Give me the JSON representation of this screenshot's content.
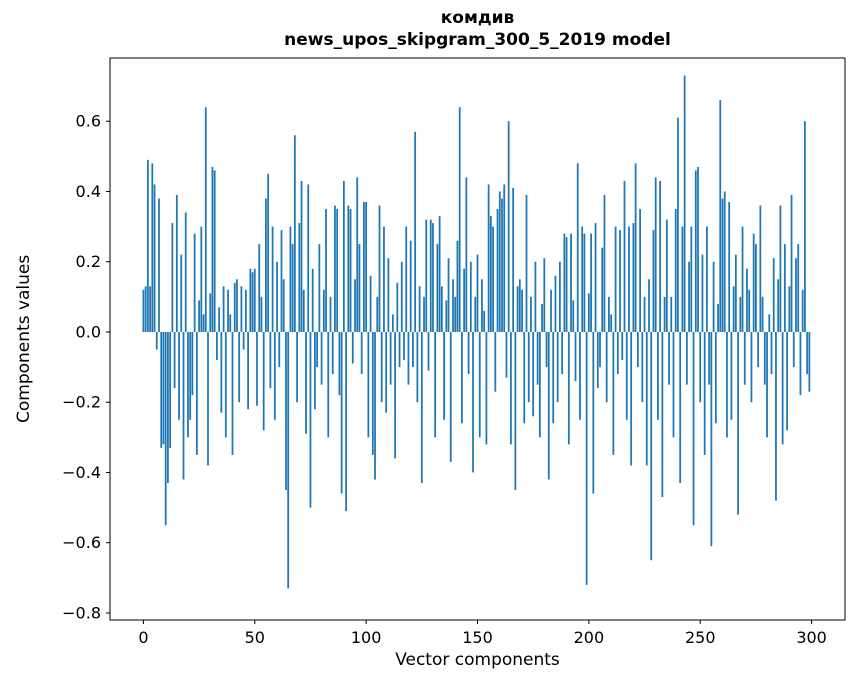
{
  "figure": {
    "title": "комдив",
    "subtitle": "news_upos_skipgram_300_5_2019 model"
  },
  "chart_data": {
    "type": "bar",
    "title": "комдив",
    "subtitle": "news_upos_skipgram_300_5_2019 model",
    "xlabel": "Vector components",
    "ylabel": "Components values",
    "legend": "none",
    "grid": false,
    "bar_color": "#1f77b4",
    "xlim": [
      -15,
      315
    ],
    "ylim": [
      -0.82,
      0.78
    ],
    "x_ticks": [
      0,
      50,
      100,
      150,
      200,
      250,
      300
    ],
    "x_tick_labels": [
      "0",
      "50",
      "100",
      "150",
      "200",
      "250",
      "300"
    ],
    "y_ticks": [
      -0.8,
      -0.6,
      -0.4,
      -0.2,
      0.0,
      0.2,
      0.4,
      0.6
    ],
    "y_tick_labels": [
      "−0.8",
      "−0.6",
      "−0.4",
      "−0.2",
      "0.0",
      "0.2",
      "0.4",
      "0.6"
    ],
    "values": [
      0.12,
      0.13,
      0.49,
      0.13,
      0.48,
      0.42,
      -0.05,
      0.38,
      -0.33,
      -0.32,
      -0.55,
      -0.43,
      -0.33,
      0.31,
      -0.16,
      0.39,
      -0.25,
      0.22,
      -0.42,
      0.34,
      -0.3,
      -0.25,
      -0.18,
      0.28,
      -0.35,
      0.09,
      0.3,
      0.05,
      0.64,
      -0.38,
      0.11,
      0.47,
      0.46,
      -0.08,
      0.07,
      -0.23,
      0.13,
      -0.3,
      0.12,
      0.05,
      -0.35,
      0.14,
      0.15,
      -0.2,
      0.13,
      -0.05,
      0.12,
      -0.22,
      0.18,
      0.17,
      0.18,
      -0.21,
      0.25,
      0.1,
      -0.28,
      0.38,
      0.45,
      -0.16,
      0.3,
      -0.25,
      0.2,
      -0.1,
      0.29,
      0.15,
      -0.45,
      -0.73,
      0.3,
      0.25,
      0.56,
      -0.2,
      0.31,
      0.43,
      0.12,
      -0.29,
      0.42,
      -0.5,
      0.18,
      -0.22,
      -0.1,
      0.25,
      -0.15,
      0.12,
      0.35,
      -0.3,
      0.1,
      -0.12,
      0.36,
      0.35,
      -0.18,
      -0.46,
      0.43,
      -0.51,
      0.36,
      0.35,
      -0.09,
      0.15,
      0.44,
      0.25,
      -0.12,
      0.37,
      0.37,
      -0.3,
      0.16,
      -0.35,
      -0.42,
      0.1,
      0.36,
      -0.2,
      0.3,
      -0.23,
      0.21,
      -0.15,
      0.05,
      -0.36,
      0.14,
      -0.1,
      0.2,
      -0.08,
      0.3,
      -0.15,
      0.26,
      -0.1,
      0.57,
      -0.2,
      0.13,
      -0.43,
      0.1,
      0.32,
      -0.11,
      0.32,
      0.31,
      -0.3,
      0.25,
      0.33,
      0.13,
      -0.25,
      0.09,
      0.21,
      -0.37,
      0.15,
      0.1,
      0.26,
      0.64,
      -0.26,
      0.18,
      0.44,
      -0.12,
      0.2,
      -0.4,
      0.1,
      0.22,
      -0.3,
      0.15,
      0.06,
      -0.32,
      0.42,
      0.33,
      0.3,
      -0.17,
      0.35,
      0.4,
      0.38,
      0.42,
      -0.13,
      0.6,
      -0.32,
      0.41,
      -0.45,
      0.13,
      0.15,
      0.12,
      -0.26,
      0.39,
      -0.2,
      0.1,
      -0.24,
      0.2,
      -0.15,
      -0.3,
      0.08,
      0.21,
      -0.1,
      -0.42,
      0.12,
      -0.26,
      0.16,
      -0.2,
      0.2,
      -0.12,
      0.28,
      0.27,
      -0.32,
      0.28,
      0.09,
      -0.14,
      0.48,
      -0.25,
      0.3,
      0.28,
      -0.72,
      0.11,
      0.28,
      -0.46,
      0.31,
      -0.16,
      -0.1,
      0.24,
      0.39,
      -0.2,
      0.1,
      0.05,
      -0.35,
      0.3,
      -0.12,
      0.29,
      -0.08,
      0.43,
      -0.25,
      0.3,
      -0.38,
      0.31,
      0.48,
      -0.1,
      0.35,
      -0.2,
      0.1,
      -0.38,
      0.15,
      -0.65,
      0.29,
      0.44,
      -0.25,
      0.43,
      -0.47,
      0.1,
      0.32,
      -0.15,
      0.1,
      -0.3,
      0.35,
      0.61,
      -0.43,
      0.3,
      0.73,
      -0.15,
      0.2,
      0.3,
      -0.55,
      0.46,
      0.47,
      -0.2,
      0.22,
      -0.35,
      0.3,
      -0.15,
      -0.61,
      0.2,
      -0.26,
      0.08,
      0.66,
      0.38,
      0.4,
      -0.3,
      0.37,
      -0.25,
      0.13,
      0.22,
      -0.52,
      0.1,
      0.3,
      -0.15,
      0.18,
      0.12,
      -0.2,
      0.28,
      0.25,
      -0.1,
      0.36,
      0.1,
      -0.15,
      -0.3,
      0.05,
      -0.12,
      0.21,
      -0.48,
      0.15,
      0.36,
      -0.32,
      0.25,
      -0.28,
      0.13,
      0.39,
      -0.1,
      0.21,
      0.25,
      -0.18,
      0.12,
      0.6,
      -0.12,
      -0.17
    ]
  }
}
